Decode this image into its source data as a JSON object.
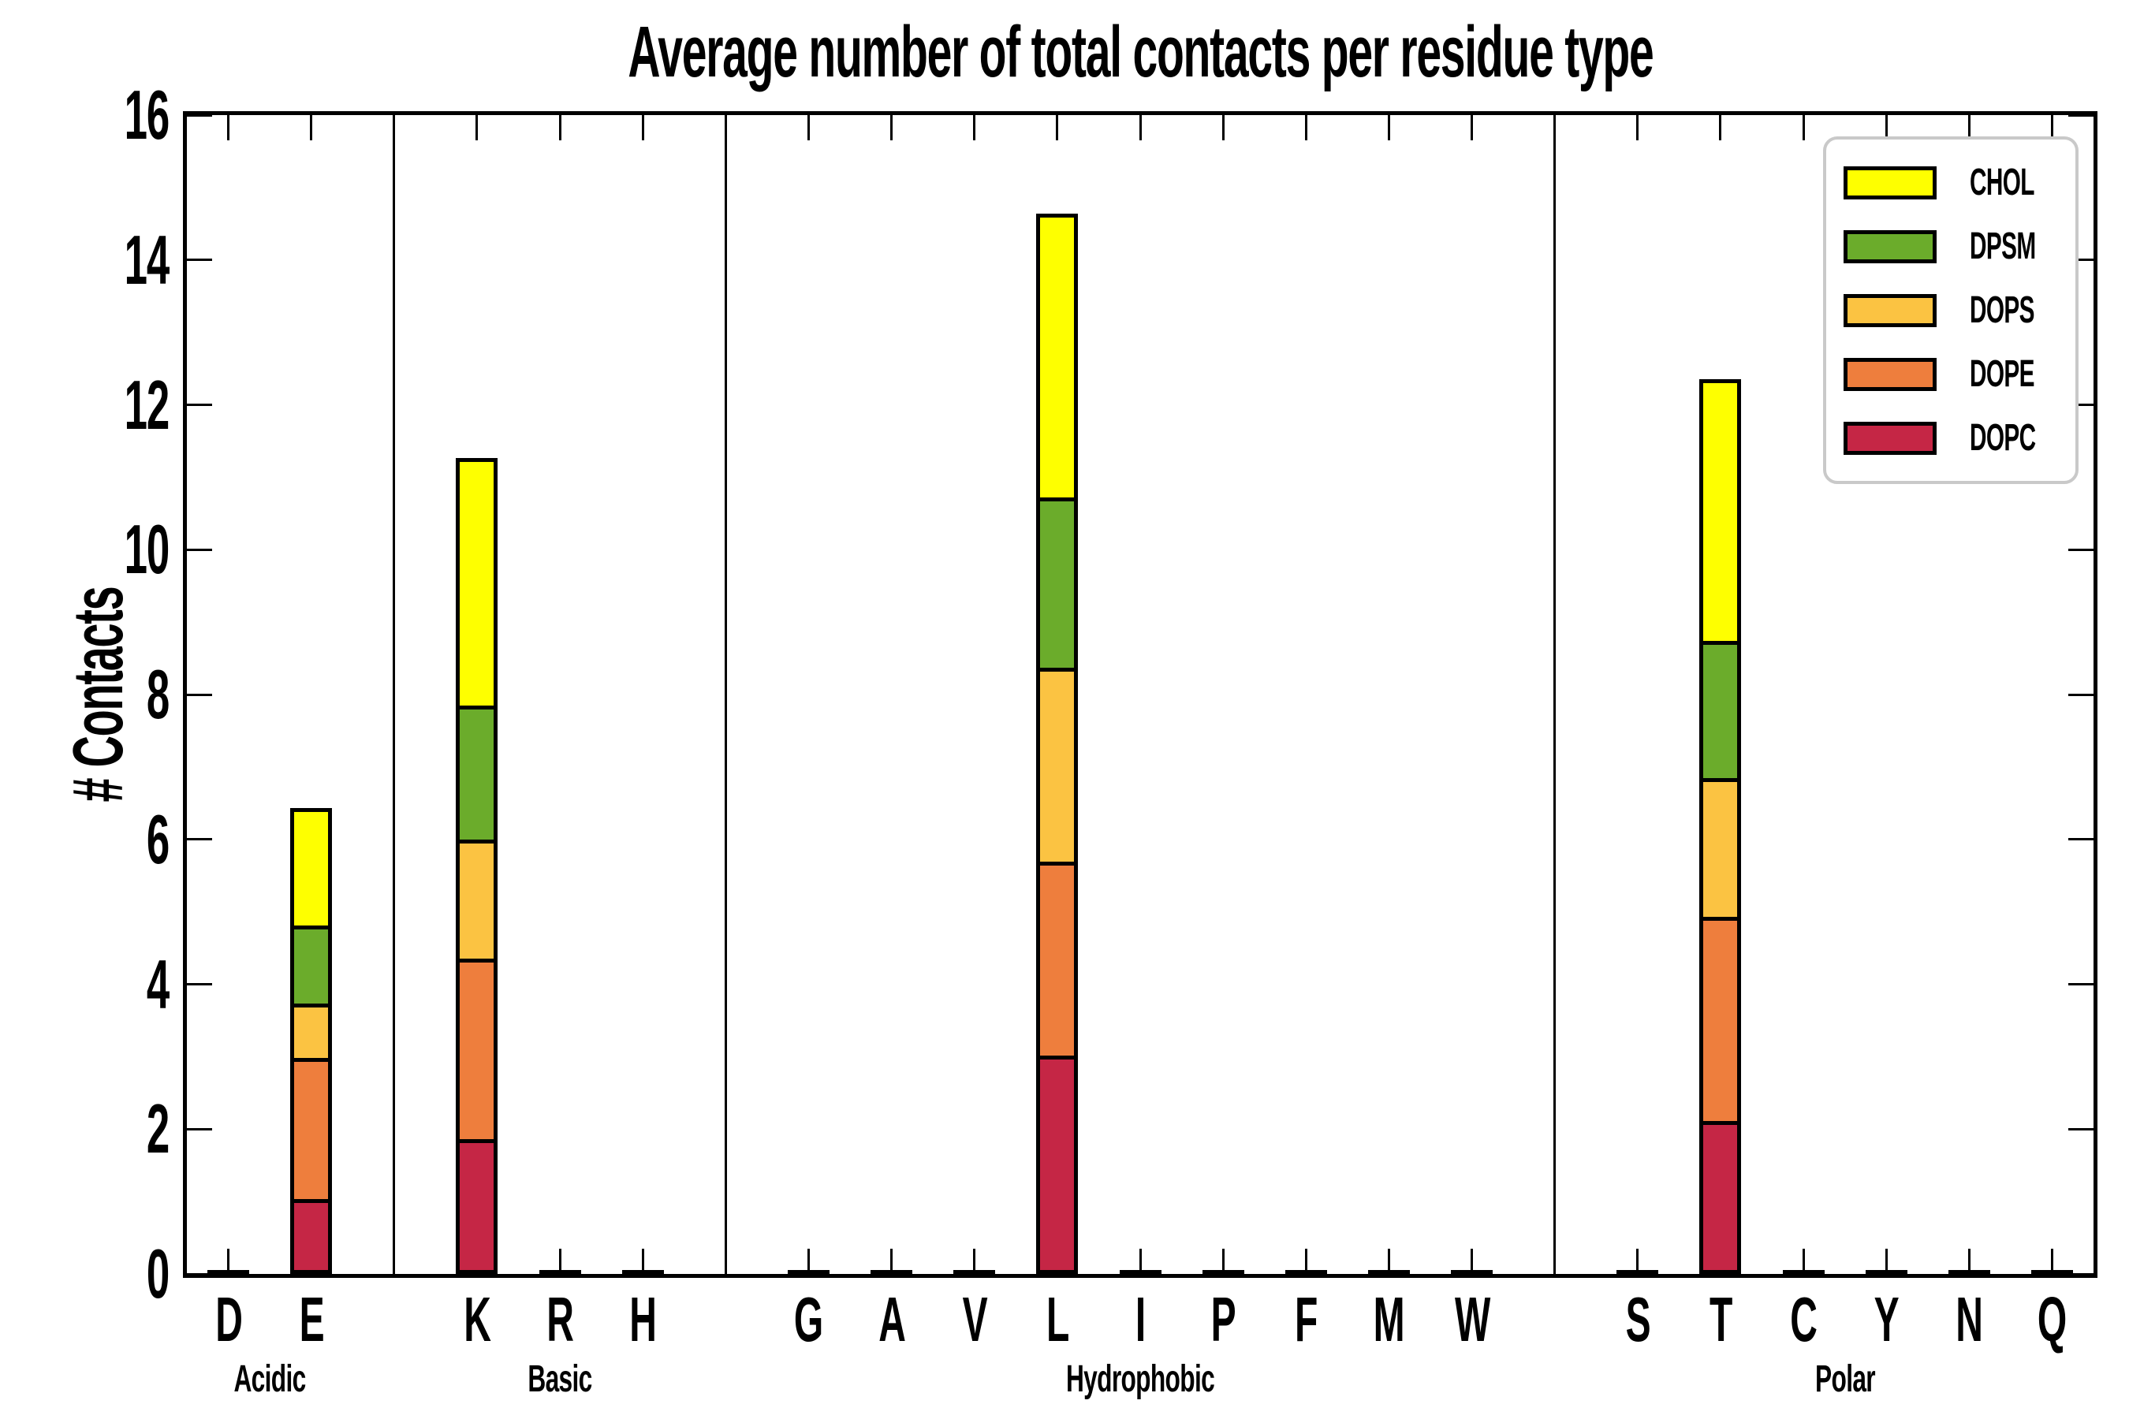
{
  "chart_data": {
    "type": "bar",
    "stacked": true,
    "title": "Average number of total contacts per residue type",
    "ylabel": "# Contacts",
    "xlabel": "",
    "ylim": [
      0,
      16
    ],
    "ytick_step": 2,
    "grid": false,
    "legend_position": "upper right",
    "stack_order": [
      "DOPC",
      "DOPE",
      "DOPS",
      "DPSM",
      "CHOL"
    ],
    "colors": {
      "CHOL": "#feff00",
      "DPSM": "#6bac2b",
      "DOPS": "#fbc342",
      "DOPE": "#ee7e3d",
      "DOPC": "#c52645"
    },
    "legend": [
      {
        "label": "CHOL",
        "color": "#feff00"
      },
      {
        "label": "DPSM",
        "color": "#6bac2b"
      },
      {
        "label": "DOPS",
        "color": "#fbc342"
      },
      {
        "label": "DOPE",
        "color": "#ee7e3d"
      },
      {
        "label": "DOPC",
        "color": "#c52645"
      }
    ],
    "groups": [
      {
        "label": "Acidic",
        "residues": [
          {
            "label": "D",
            "values": {
              "DOPC": 0.05,
              "DOPE": 0,
              "DOPS": 0,
              "DPSM": 0,
              "CHOL": 0
            }
          },
          {
            "label": "E",
            "values": {
              "DOPC": 0.97,
              "DOPE": 2.0,
              "DOPS": 0.73,
              "DPSM": 1.08,
              "CHOL": 1.65
            }
          }
        ]
      },
      {
        "label": "Basic",
        "residues": [
          {
            "label": "K",
            "values": {
              "DOPC": 1.8,
              "DOPE": 2.52,
              "DOPS": 1.63,
              "DPSM": 1.85,
              "CHOL": 3.46
            }
          },
          {
            "label": "R",
            "values": {
              "DOPC": 0.06,
              "DOPE": 0,
              "DOPS": 0,
              "DPSM": 0,
              "CHOL": 0
            }
          },
          {
            "label": "H",
            "values": {
              "DOPC": 0.04,
              "DOPE": 0,
              "DOPS": 0,
              "DPSM": 0,
              "CHOL": 0
            }
          }
        ]
      },
      {
        "label": "Hydrophobic",
        "residues": [
          {
            "label": "G",
            "values": {
              "DOPC": 0.03,
              "DOPE": 0,
              "DOPS": 0,
              "DPSM": 0,
              "CHOL": 0
            }
          },
          {
            "label": "A",
            "values": {
              "DOPC": 0.04,
              "DOPE": 0,
              "DOPS": 0,
              "DPSM": 0,
              "CHOL": 0
            }
          },
          {
            "label": "V",
            "values": {
              "DOPC": 0.04,
              "DOPE": 0,
              "DOPS": 0,
              "DPSM": 0,
              "CHOL": 0
            }
          },
          {
            "label": "L",
            "values": {
              "DOPC": 2.97,
              "DOPE": 2.69,
              "DOPS": 2.68,
              "DPSM": 2.35,
              "CHOL": 3.95
            }
          },
          {
            "label": "I",
            "values": {
              "DOPC": 0.04,
              "DOPE": 0,
              "DOPS": 0,
              "DPSM": 0,
              "CHOL": 0
            }
          },
          {
            "label": "P",
            "values": {
              "DOPC": 0.03,
              "DOPE": 0,
              "DOPS": 0,
              "DPSM": 0,
              "CHOL": 0
            }
          },
          {
            "label": "F",
            "values": {
              "DOPC": 0.04,
              "DOPE": 0,
              "DOPS": 0,
              "DPSM": 0,
              "CHOL": 0
            }
          },
          {
            "label": "M",
            "values": {
              "DOPC": 0.04,
              "DOPE": 0,
              "DOPS": 0,
              "DPSM": 0,
              "CHOL": 0
            }
          },
          {
            "label": "W",
            "values": {
              "DOPC": 0.04,
              "DOPE": 0,
              "DOPS": 0,
              "DPSM": 0,
              "CHOL": 0
            }
          }
        ]
      },
      {
        "label": "Polar",
        "residues": [
          {
            "label": "S",
            "values": {
              "DOPC": 0.05,
              "DOPE": 0,
              "DOPS": 0,
              "DPSM": 0,
              "CHOL": 0
            }
          },
          {
            "label": "T",
            "values": {
              "DOPC": 2.06,
              "DOPE": 2.84,
              "DOPS": 1.91,
              "DPSM": 1.89,
              "CHOL": 3.65
            }
          },
          {
            "label": "C",
            "values": {
              "DOPC": 0.03,
              "DOPE": 0,
              "DOPS": 0,
              "DPSM": 0,
              "CHOL": 0
            }
          },
          {
            "label": "Y",
            "values": {
              "DOPC": 0.05,
              "DOPE": 0,
              "DOPS": 0,
              "DPSM": 0,
              "CHOL": 0
            }
          },
          {
            "label": "N",
            "values": {
              "DOPC": 0.04,
              "DOPE": 0,
              "DOPS": 0,
              "DPSM": 0,
              "CHOL": 0
            }
          },
          {
            "label": "Q",
            "values": {
              "DOPC": 0.03,
              "DOPE": 0,
              "DOPS": 0,
              "DPSM": 0,
              "CHOL": 0
            }
          }
        ]
      }
    ],
    "yticks": [
      "0",
      "2",
      "4",
      "6",
      "8",
      "10",
      "12",
      "14",
      "16"
    ]
  }
}
